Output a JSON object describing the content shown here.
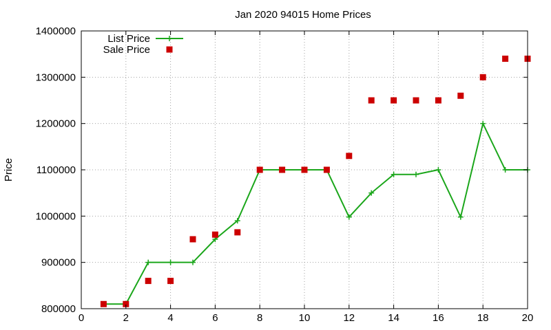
{
  "chart_data": {
    "type": "line",
    "title": "Jan 2020 94015 Home Prices",
    "xlabel": "",
    "ylabel": "Price",
    "xlim": [
      0,
      20
    ],
    "ylim": [
      800000,
      1400000
    ],
    "x_ticks": [
      0,
      2,
      4,
      6,
      8,
      10,
      12,
      14,
      16,
      18,
      20
    ],
    "y_ticks": [
      800000,
      900000,
      1000000,
      1100000,
      1200000,
      1300000,
      1400000
    ],
    "grid": true,
    "legend_position": "top-left",
    "series": [
      {
        "name": "List Price",
        "style": "line-with-plus-markers",
        "color": "#1aa61a",
        "x": [
          1,
          2,
          3,
          4,
          5,
          6,
          7,
          8,
          9,
          10,
          11,
          12,
          13,
          14,
          15,
          16,
          17,
          18,
          19,
          20
        ],
        "values": [
          810000,
          810000,
          900000,
          900000,
          900000,
          950000,
          990000,
          1100000,
          1100000,
          1100000,
          1100000,
          998000,
          1050000,
          1090000,
          1090000,
          1100000,
          998000,
          1200000,
          1100000,
          1100000
        ]
      },
      {
        "name": "Sale Price",
        "style": "square-markers",
        "color": "#cc0000",
        "x": [
          1,
          2,
          3,
          4,
          5,
          6,
          7,
          8,
          9,
          10,
          11,
          12,
          13,
          14,
          15,
          16,
          17,
          18,
          19,
          20
        ],
        "values": [
          810000,
          810000,
          860000,
          860000,
          950000,
          960000,
          965000,
          1100000,
          1100000,
          1100000,
          1100000,
          1130000,
          1250000,
          1250000,
          1250000,
          1250000,
          1260000,
          1300000,
          1340000,
          1340000
        ]
      }
    ]
  }
}
